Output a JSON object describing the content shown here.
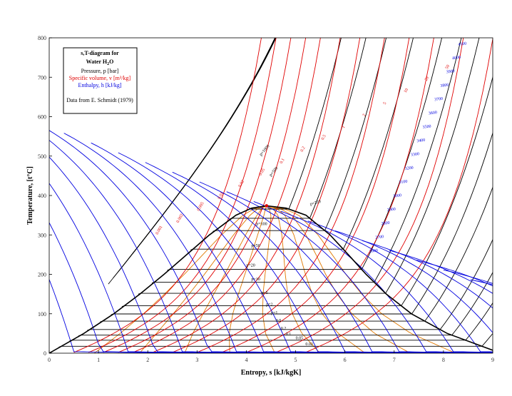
{
  "chart_data": {
    "type": "line",
    "xlabel": "Entropy, s [kJ/kgK]",
    "ylabel": "Temperature, [t°C]",
    "xlim": [
      0,
      9
    ],
    "ylim": [
      0,
      800
    ],
    "x_ticks": [
      "0",
      "1",
      "2",
      "3",
      "4",
      "5",
      "6",
      "7",
      "8",
      "9"
    ],
    "y_ticks": [
      "0",
      "100",
      "200",
      "300",
      "400",
      "500",
      "600",
      "700",
      "800"
    ],
    "grid": false,
    "legend_position": "top-left",
    "legend": {
      "title_line1": "s,T-diagram for",
      "title_line2": "Water H",
      "title_sub": "2",
      "title_end": "O",
      "pressure": "Pressure, p [bar]",
      "volume": "Specific volume, v [m³/kg]",
      "enthalpy": "Enthalpy, h [kJ/kg]",
      "source": "Data from E. Schmidt (1979)"
    },
    "colors": {
      "pressure": "#000000",
      "volume": "#e00000",
      "enthalpy": "#0000e0",
      "quality": "#e07800",
      "saturation": "#000000"
    },
    "critical_point": {
      "s": 4.41,
      "t": 374
    },
    "saturation_dome": {
      "liquid": [
        [
          0,
          0
        ],
        [
          0.7,
          50
        ],
        [
          1.31,
          100
        ],
        [
          1.84,
          150
        ],
        [
          2.33,
          200
        ],
        [
          2.79,
          250
        ],
        [
          3.25,
          300
        ],
        [
          3.79,
          350
        ],
        [
          4.11,
          368
        ],
        [
          4.41,
          374
        ]
      ],
      "vapor": [
        [
          9.16,
          0
        ],
        [
          8.08,
          50
        ],
        [
          7.35,
          100
        ],
        [
          6.84,
          150
        ],
        [
          6.43,
          200
        ],
        [
          6.07,
          250
        ],
        [
          5.7,
          300
        ],
        [
          5.21,
          350
        ],
        [
          4.81,
          368
        ],
        [
          4.41,
          374
        ]
      ]
    },
    "enthalpy_labels": [
      "4100",
      "4000",
      "3900",
      "3800",
      "3700",
      "3600",
      "3500",
      "3400",
      "3300",
      "3200",
      "3100",
      "3000",
      "2900",
      "2800",
      "2700",
      "2600"
    ],
    "pressure_labels": [
      "p=100",
      "p=50",
      "p=20",
      "p=10",
      "p=5",
      "p=2",
      "p=1",
      "0.5",
      "0.2",
      "0.1",
      "0.05",
      "0.02",
      "p=500",
      "p=1000",
      "p=220"
    ],
    "volume_labels": [
      "0.001",
      "0.002",
      "0.005",
      "0.01",
      "0.02",
      "0.05",
      "0.1",
      "0.2",
      "0.5",
      "1",
      "2",
      "5",
      "10",
      "20",
      "50"
    ]
  }
}
